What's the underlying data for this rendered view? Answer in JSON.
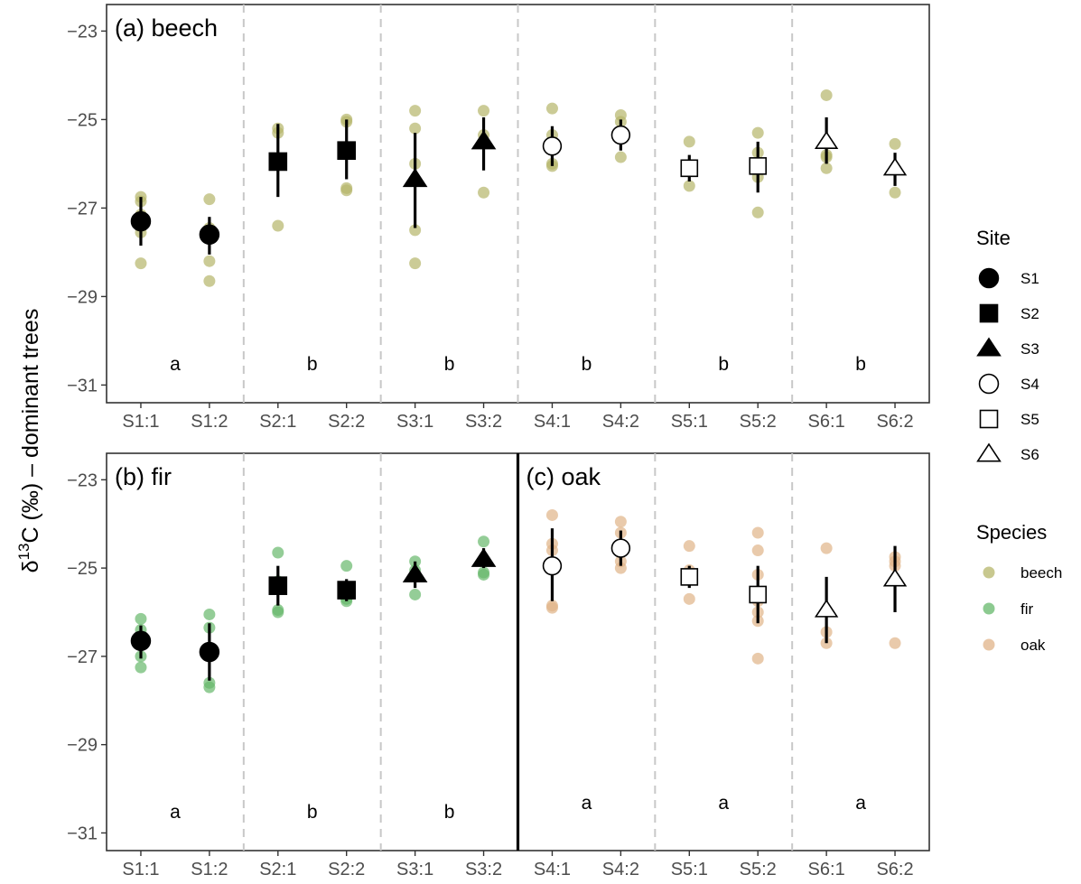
{
  "colors": {
    "beech": "#b5b56a",
    "fir": "#66b86b",
    "oak": "#e0b388",
    "divider": "#c8c8c8",
    "frame": "#333333",
    "tick": "#4d4d4d"
  },
  "y_axis": {
    "title_main": "δ",
    "title_sup": "13",
    "title_rest": "C (‰) – dominant trees",
    "ticks": [
      -23,
      -25,
      -27,
      -29,
      -31
    ],
    "tick_labels": [
      "−23",
      "−25",
      "−27",
      "−29",
      "−31"
    ],
    "ylim": [
      -31.4,
      -22.4
    ]
  },
  "x_axis": {
    "categories": [
      "S1:1",
      "S1:2",
      "S2:1",
      "S2:2",
      "S3:1",
      "S3:2",
      "S4:1",
      "S4:2",
      "S5:1",
      "S5:2",
      "S6:1",
      "S6:2"
    ]
  },
  "legend": {
    "site_title": "Site",
    "sites": [
      {
        "label": "S1",
        "shape": "circle",
        "fill": "black"
      },
      {
        "label": "S2",
        "shape": "square",
        "fill": "black"
      },
      {
        "label": "S3",
        "shape": "triangle",
        "fill": "black"
      },
      {
        "label": "S4",
        "shape": "circle",
        "fill": "white"
      },
      {
        "label": "S5",
        "shape": "square",
        "fill": "white"
      },
      {
        "label": "S6",
        "shape": "triangle",
        "fill": "white"
      }
    ],
    "species_title": "Species",
    "species": [
      {
        "label": "beech",
        "color": "#b5b56a"
      },
      {
        "label": "fir",
        "color": "#66b86b"
      },
      {
        "label": "oak",
        "color": "#e0b388"
      }
    ]
  },
  "chart_data": [
    {
      "type": "scatter",
      "panel": "(a) beech",
      "species": "beech",
      "categories": [
        "S1:1",
        "S1:2",
        "S2:1",
        "S2:2",
        "S3:1",
        "S3:2",
        "S4:1",
        "S4:2",
        "S5:1",
        "S5:2",
        "S6:1",
        "S6:2"
      ],
      "ylim": [
        -31.4,
        -22.4
      ],
      "group_letters": [
        "a",
        "b",
        "b",
        "b",
        "b",
        "b"
      ],
      "summary": [
        {
          "x": "S1:1",
          "site": "S1",
          "mean": -27.3,
          "lo": -27.85,
          "hi": -26.75
        },
        {
          "x": "S1:2",
          "site": "S1",
          "mean": -27.6,
          "lo": -28.05,
          "hi": -27.2
        },
        {
          "x": "S2:1",
          "site": "S2",
          "mean": -25.95,
          "lo": -26.75,
          "hi": -25.1
        },
        {
          "x": "S2:2",
          "site": "S2",
          "mean": -25.7,
          "lo": -26.35,
          "hi": -25.0
        },
        {
          "x": "S3:1",
          "site": "S3",
          "mean": -26.35,
          "lo": -27.45,
          "hi": -25.3
        },
        {
          "x": "S3:2",
          "site": "S3",
          "mean": -25.5,
          "lo": -26.15,
          "hi": -24.95
        },
        {
          "x": "S4:1",
          "site": "S4",
          "mean": -25.6,
          "lo": -26.05,
          "hi": -25.15
        },
        {
          "x": "S4:2",
          "site": "S4",
          "mean": -25.35,
          "lo": -25.7,
          "hi": -25.0
        },
        {
          "x": "S5:1",
          "site": "S5",
          "mean": -26.1,
          "lo": -26.4,
          "hi": -25.8
        },
        {
          "x": "S5:2",
          "site": "S5",
          "mean": -26.05,
          "lo": -26.65,
          "hi": -25.5
        },
        {
          "x": "S6:1",
          "site": "S6",
          "mean": -25.5,
          "lo": -26.0,
          "hi": -24.95
        },
        {
          "x": "S6:2",
          "site": "S6",
          "mean": -26.1,
          "lo": -26.5,
          "hi": -25.75
        }
      ],
      "observations": [
        {
          "x": "S1:1",
          "y": [
            -26.75,
            -26.85,
            -27.15,
            -27.55,
            -28.25
          ]
        },
        {
          "x": "S1:2",
          "y": [
            -26.8,
            -27.45,
            -27.6,
            -28.2,
            -28.65
          ]
        },
        {
          "x": "S2:1",
          "y": [
            -25.2,
            -25.3,
            -27.4
          ]
        },
        {
          "x": "S2:2",
          "y": [
            -25.0,
            -25.05,
            -25.7,
            -26.55,
            -26.6
          ]
        },
        {
          "x": "S3:1",
          "y": [
            -24.8,
            -25.2,
            -26.0,
            -27.5,
            -28.25
          ]
        },
        {
          "x": "S3:2",
          "y": [
            -24.8,
            -25.35,
            -26.65
          ]
        },
        {
          "x": "S4:1",
          "y": [
            -24.75,
            -25.35,
            -26.0,
            -26.05
          ]
        },
        {
          "x": "S4:2",
          "y": [
            -24.9,
            -25.05,
            -25.85
          ]
        },
        {
          "x": "S5:1",
          "y": [
            -25.5,
            -26.05,
            -26.5
          ]
        },
        {
          "x": "S5:2",
          "y": [
            -25.3,
            -25.75,
            -26.3,
            -27.1
          ]
        },
        {
          "x": "S6:1",
          "y": [
            -24.45,
            -25.8,
            -25.85,
            -26.1
          ]
        },
        {
          "x": "S6:2",
          "y": [
            -25.55,
            -26.65
          ]
        }
      ]
    },
    {
      "type": "scatter",
      "panel": "(b) fir",
      "species": "fir",
      "categories": [
        "S1:1",
        "S1:2",
        "S2:1",
        "S2:2",
        "S3:1",
        "S3:2"
      ],
      "ylim": [
        -31.4,
        -22.4
      ],
      "group_letters": [
        "a",
        "b",
        "b"
      ],
      "summary": [
        {
          "x": "S1:1",
          "site": "S1",
          "mean": -26.65,
          "lo": -27.05,
          "hi": -26.3
        },
        {
          "x": "S1:2",
          "site": "S1",
          "mean": -26.9,
          "lo": -27.55,
          "hi": -26.25
        },
        {
          "x": "S2:1",
          "site": "S2",
          "mean": -25.4,
          "lo": -25.85,
          "hi": -24.95
        },
        {
          "x": "S2:2",
          "site": "S2",
          "mean": -25.5,
          "lo": -25.75,
          "hi": -25.25
        },
        {
          "x": "S3:1",
          "site": "S3",
          "mean": -25.15,
          "lo": -25.45,
          "hi": -24.85
        },
        {
          "x": "S3:2",
          "site": "S3",
          "mean": -24.8,
          "lo": -25.0,
          "hi": -24.55
        }
      ],
      "observations": [
        {
          "x": "S1:1",
          "y": [
            -26.15,
            -26.4,
            -27.0,
            -27.25
          ]
        },
        {
          "x": "S1:2",
          "y": [
            -26.05,
            -26.35,
            -27.6,
            -27.7
          ]
        },
        {
          "x": "S2:1",
          "y": [
            -24.65,
            -25.3,
            -25.95,
            -26.0
          ]
        },
        {
          "x": "S2:2",
          "y": [
            -24.95,
            -25.7,
            -25.75
          ]
        },
        {
          "x": "S3:1",
          "y": [
            -24.85,
            -25.05,
            -25.6
          ]
        },
        {
          "x": "S3:2",
          "y": [
            -24.4,
            -25.1,
            -25.15
          ]
        }
      ]
    },
    {
      "type": "scatter",
      "panel": "(c) oak",
      "species": "oak",
      "categories": [
        "S4:1",
        "S4:2",
        "S5:1",
        "S5:2",
        "S6:1",
        "S6:2"
      ],
      "ylim": [
        -31.4,
        -22.4
      ],
      "group_letters": [
        "a",
        "a",
        "a"
      ],
      "summary": [
        {
          "x": "S4:1",
          "site": "S4",
          "mean": -24.95,
          "lo": -25.75,
          "hi": -24.1
        },
        {
          "x": "S4:2",
          "site": "S4",
          "mean": -24.55,
          "lo": -24.95,
          "hi": -24.15
        },
        {
          "x": "S5:1",
          "site": "S5",
          "mean": -25.2,
          "lo": -25.45,
          "hi": -24.95
        },
        {
          "x": "S5:2",
          "site": "S5",
          "mean": -25.6,
          "lo": -26.25,
          "hi": -24.95
        },
        {
          "x": "S6:1",
          "site": "S6",
          "mean": -25.95,
          "lo": -26.7,
          "hi": -25.2
        },
        {
          "x": "S6:2",
          "site": "S6",
          "mean": -25.25,
          "lo": -26.0,
          "hi": -24.5
        }
      ],
      "observations": [
        {
          "x": "S4:1",
          "y": [
            -23.8,
            -24.45,
            -24.6,
            -25.85,
            -25.9
          ]
        },
        {
          "x": "S4:2",
          "y": [
            -23.95,
            -24.2,
            -24.85,
            -25.0
          ]
        },
        {
          "x": "S5:1",
          "y": [
            -24.5,
            -25.05,
            -25.7
          ]
        },
        {
          "x": "S5:2",
          "y": [
            -24.2,
            -24.6,
            -25.15,
            -25.75,
            -26.0,
            -26.2,
            -27.05
          ]
        },
        {
          "x": "S6:1",
          "y": [
            -24.55,
            -26.45,
            -26.7
          ]
        },
        {
          "x": "S6:2",
          "y": [
            -24.75,
            -24.85,
            -24.95,
            -26.7
          ]
        }
      ]
    }
  ]
}
